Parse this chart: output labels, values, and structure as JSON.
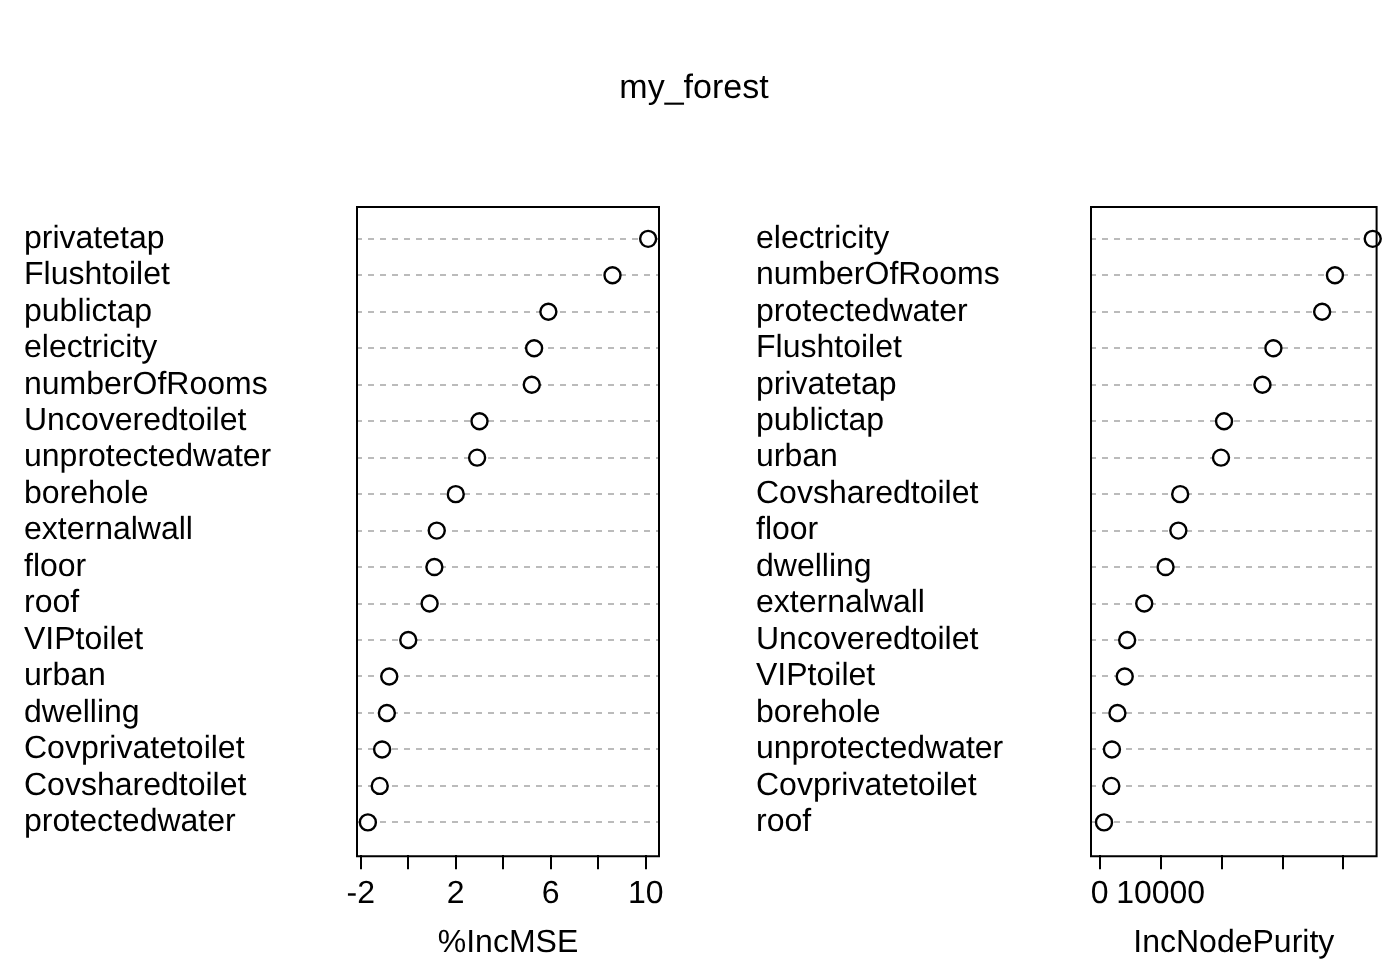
{
  "chart_data": [
    {
      "type": "scatter",
      "title": "my_forest",
      "orientation": "horizontal",
      "xlabel": "%IncMSE",
      "categories": [
        "privatetap",
        "Flushtoilet",
        "publictap",
        "electricity",
        "numberOfRooms",
        "Uncoveredtoilet",
        "unprotectedwater",
        "borehole",
        "externalwall",
        "floor",
        "roof",
        "VIPtoilet",
        "urban",
        "dwelling",
        "Covprivatetoilet",
        "Covsharedtoilet",
        "protectedwater"
      ],
      "values": [
        10.1,
        8.6,
        5.9,
        5.3,
        5.2,
        3.0,
        2.9,
        2.0,
        1.2,
        1.1,
        0.9,
        0.0,
        -0.8,
        -0.9,
        -1.1,
        -1.2,
        -1.7
      ],
      "color": "#000000",
      "xlim": [
        -2.2,
        10.6
      ],
      "xticks": [
        -2,
        {
          "value": 0,
          "label": null
        },
        2,
        {
          "value": 4,
          "label": null
        },
        6,
        {
          "value": 8,
          "label": null
        },
        10
      ],
      "grid": "y",
      "marker": "circle",
      "legend": false
    },
    {
      "type": "scatter",
      "orientation": "horizontal",
      "xlabel": "IncNodePurity",
      "categories": [
        "electricity",
        "numberOfRooms",
        "protectedwater",
        "Flushtoilet",
        "privatetap",
        "publictap",
        "urban",
        "Covsharedtoilet",
        "floor",
        "dwelling",
        "externalwall",
        "Uncoveredtoilet",
        "VIPtoilet",
        "borehole",
        "unprotectedwater",
        "Covprivatetoilet",
        "roof"
      ],
      "values": [
        44800,
        38600,
        36500,
        28500,
        26700,
        20400,
        19900,
        13200,
        12900,
        10800,
        7300,
        4500,
        4100,
        2900,
        2000,
        1900,
        700
      ],
      "color": "#000000",
      "xlim": [
        -1600,
        45600
      ],
      "xticks": [
        0,
        10000,
        {
          "value": 20000,
          "label": null
        },
        {
          "value": 30000,
          "label": null
        },
        {
          "value": 40000,
          "label": null
        }
      ],
      "grid": "y",
      "marker": "circle",
      "legend": false
    }
  ]
}
